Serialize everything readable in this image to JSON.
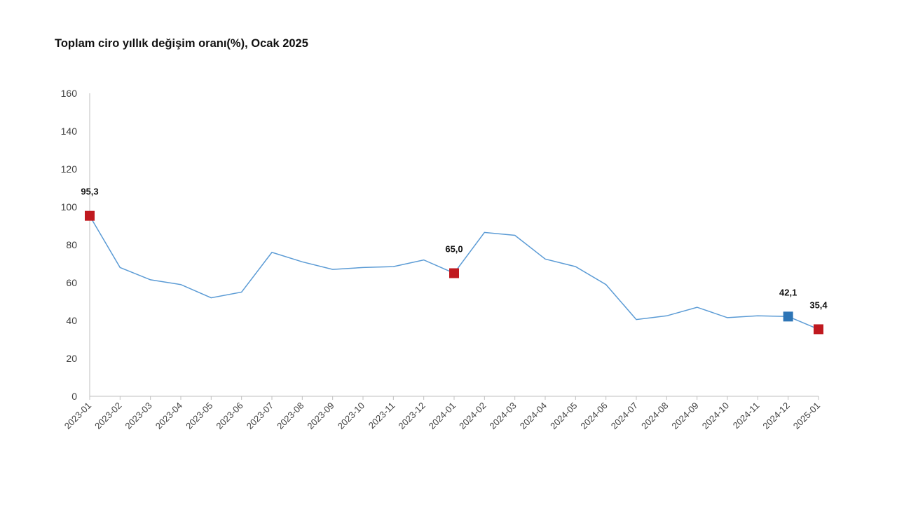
{
  "title": "Toplam ciro yıllık değişim oranı(%), Ocak 2025",
  "colors": {
    "line": "#5b9bd5",
    "marker_red": "#c0191f",
    "marker_blue": "#2e75b6",
    "axis": "#bfbfbf"
  },
  "chart_data": {
    "type": "line",
    "title": "Toplam ciro yıllık değişim oranı(%), Ocak 2025",
    "xlabel": "",
    "ylabel": "",
    "ylim": [
      0,
      160
    ],
    "yticks": [
      0,
      20,
      40,
      60,
      80,
      100,
      120,
      140,
      160
    ],
    "grid": false,
    "categories": [
      "2023-01",
      "2023-02",
      "2023-03",
      "2023-04",
      "2023-05",
      "2023-06",
      "2023-07",
      "2023-08",
      "2023-09",
      "2023-10",
      "2023-11",
      "2023-12",
      "2024-01",
      "2024-02",
      "2024-03",
      "2024-04",
      "2024-05",
      "2024-06",
      "2024-07",
      "2024-08",
      "2024-09",
      "2024-10",
      "2024-11",
      "2024-12",
      "2025-01"
    ],
    "series": [
      {
        "values": [
          95.3,
          68.0,
          61.5,
          59.0,
          52.0,
          55.0,
          76.0,
          71.0,
          67.0,
          68.0,
          68.5,
          72.0,
          65.0,
          86.5,
          85.0,
          72.5,
          68.5,
          59.0,
          40.5,
          42.5,
          47.0,
          41.5,
          42.5,
          42.1,
          35.4
        ]
      }
    ],
    "highlights": [
      {
        "index": 0,
        "label": "95,3",
        "color": "red"
      },
      {
        "index": 12,
        "label": "65,0",
        "color": "red"
      },
      {
        "index": 23,
        "label": "42,1",
        "color": "blue"
      },
      {
        "index": 24,
        "label": "35,4",
        "color": "red"
      }
    ]
  }
}
